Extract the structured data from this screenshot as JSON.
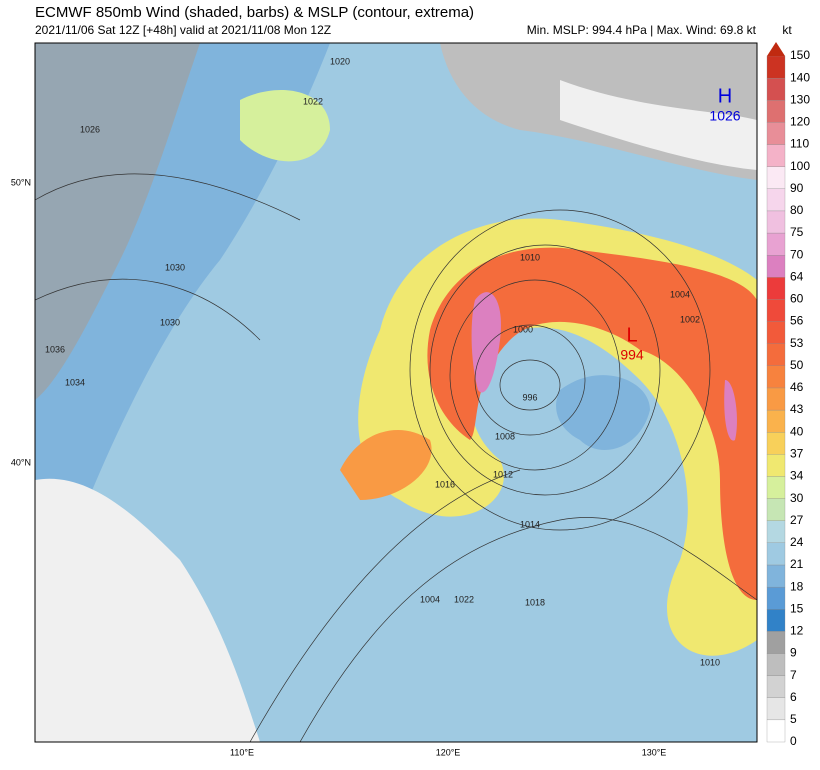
{
  "header": {
    "title": "ECMWF 850mb Wind (shaded, barbs) & MSLP (contour, extrema)",
    "subtitle": "2021/11/06 Sat 12Z [+48h] valid at 2021/11/08 Mon 12Z",
    "stats": "Min. MSLP: 994.4 hPa | Max. Wind: 69.8 kt"
  },
  "colorbar": {
    "unit": "kt",
    "levels": [
      {
        "value": 0,
        "color": "#ffffff"
      },
      {
        "value": 5,
        "color": "#e6e6e6"
      },
      {
        "value": 6,
        "color": "#d2d2d2"
      },
      {
        "value": 7,
        "color": "#bebebe"
      },
      {
        "value": 9,
        "color": "#a0a0a0"
      },
      {
        "value": 12,
        "color": "#3182c8"
      },
      {
        "value": 15,
        "color": "#5a9bd6"
      },
      {
        "value": 18,
        "color": "#80b4dc"
      },
      {
        "value": 21,
        "color": "#9fcae2"
      },
      {
        "value": 24,
        "color": "#b4d8e2"
      },
      {
        "value": 27,
        "color": "#c6e6b4"
      },
      {
        "value": 30,
        "color": "#d6f09c"
      },
      {
        "value": 34,
        "color": "#f0e870"
      },
      {
        "value": 37,
        "color": "#f8d05a"
      },
      {
        "value": 40,
        "color": "#fab24c"
      },
      {
        "value": 43,
        "color": "#f99a44"
      },
      {
        "value": 46,
        "color": "#f7823e"
      },
      {
        "value": 50,
        "color": "#f46c3c"
      },
      {
        "value": 53,
        "color": "#f25a3a"
      },
      {
        "value": 56,
        "color": "#ef4a3a"
      },
      {
        "value": 60,
        "color": "#ec3b3b"
      },
      {
        "value": 64,
        "color": "#dc80c0"
      },
      {
        "value": 70,
        "color": "#e8a2d2"
      },
      {
        "value": 75,
        "color": "#f0c0e0"
      },
      {
        "value": 80,
        "color": "#f6d6ec"
      },
      {
        "value": 90,
        "color": "#fbe9f4"
      },
      {
        "value": 100,
        "color": "#f4b2c8"
      },
      {
        "value": 110,
        "color": "#e88e98"
      },
      {
        "value": 120,
        "color": "#de7070"
      },
      {
        "value": 130,
        "color": "#d45050"
      },
      {
        "value": 140,
        "color": "#cc3322"
      },
      {
        "value": 150,
        "color": "#c02a10"
      }
    ]
  },
  "map": {
    "lon_labels": [
      "110°E",
      "120°E",
      "130°E"
    ],
    "lat_labels": [
      "50°N",
      "40°N"
    ],
    "extrema": [
      {
        "symbol": "H",
        "value": "1026"
      },
      {
        "symbol": "L",
        "value": "994"
      }
    ],
    "contour_labels": [
      "1020",
      "1022",
      "1026",
      "1030",
      "1030",
      "1034",
      "1036",
      "1010",
      "1000",
      "996",
      "1008",
      "1012",
      "1016",
      "1014",
      "1018",
      "1022",
      "1004",
      "1004",
      "1002",
      "1010"
    ]
  }
}
